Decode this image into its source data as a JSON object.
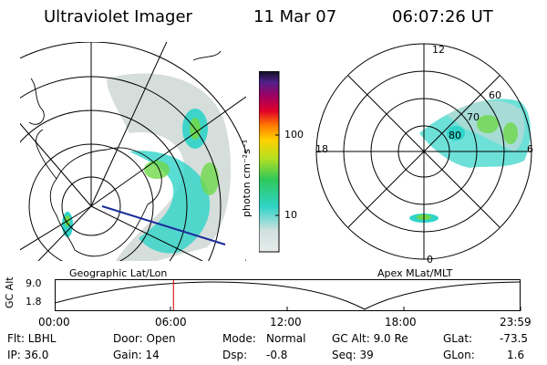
{
  "header": {
    "title": "Ultraviolet Imager",
    "date": "11 Mar 07",
    "time": "06:07:26 UT"
  },
  "colorbar": {
    "label": "photon cm⁻²s⁻¹",
    "ticks": [
      "100",
      "10"
    ]
  },
  "left_map": {
    "caption": "Geographic Lat/Lon"
  },
  "right_map": {
    "caption": "Apex MLat/MLT",
    "mlt_labels": {
      "top": "12",
      "left": "18",
      "right": "6",
      "bottom": "0"
    },
    "lat_labels": [
      "60",
      "70",
      "80"
    ]
  },
  "timeline": {
    "ylabel": "GC Alt",
    "ticks_y": [
      "9.0",
      "1.8"
    ],
    "ticks_x": [
      "00:00",
      "06:00",
      "12:00",
      "18:00",
      "23:59"
    ],
    "current_time_hours": 6.12
  },
  "info": {
    "row1": {
      "flt": "Flt: LBHL",
      "door": "Door: Open",
      "mode_label": "Mode:",
      "mode_value": "Normal",
      "gcalt": "GC Alt: 9.0 Re",
      "glat_label": "GLat:",
      "glat_value": "-73.5"
    },
    "row2": {
      "ip": "IP: 36.0",
      "gain": "Gain: 14",
      "dsp_label": "Dsp:",
      "dsp_value": "-0.8",
      "seq": "Seq: 39",
      "glon_label": "GLon:",
      "glon_value": "1.6"
    }
  },
  "colors": {
    "aurora_main": "#2fd3c8",
    "aurora_bright": "#6fd84a",
    "aurora_faint": "#cfd8d6",
    "marker": "#e02020",
    "track": "#1a2a9a"
  }
}
